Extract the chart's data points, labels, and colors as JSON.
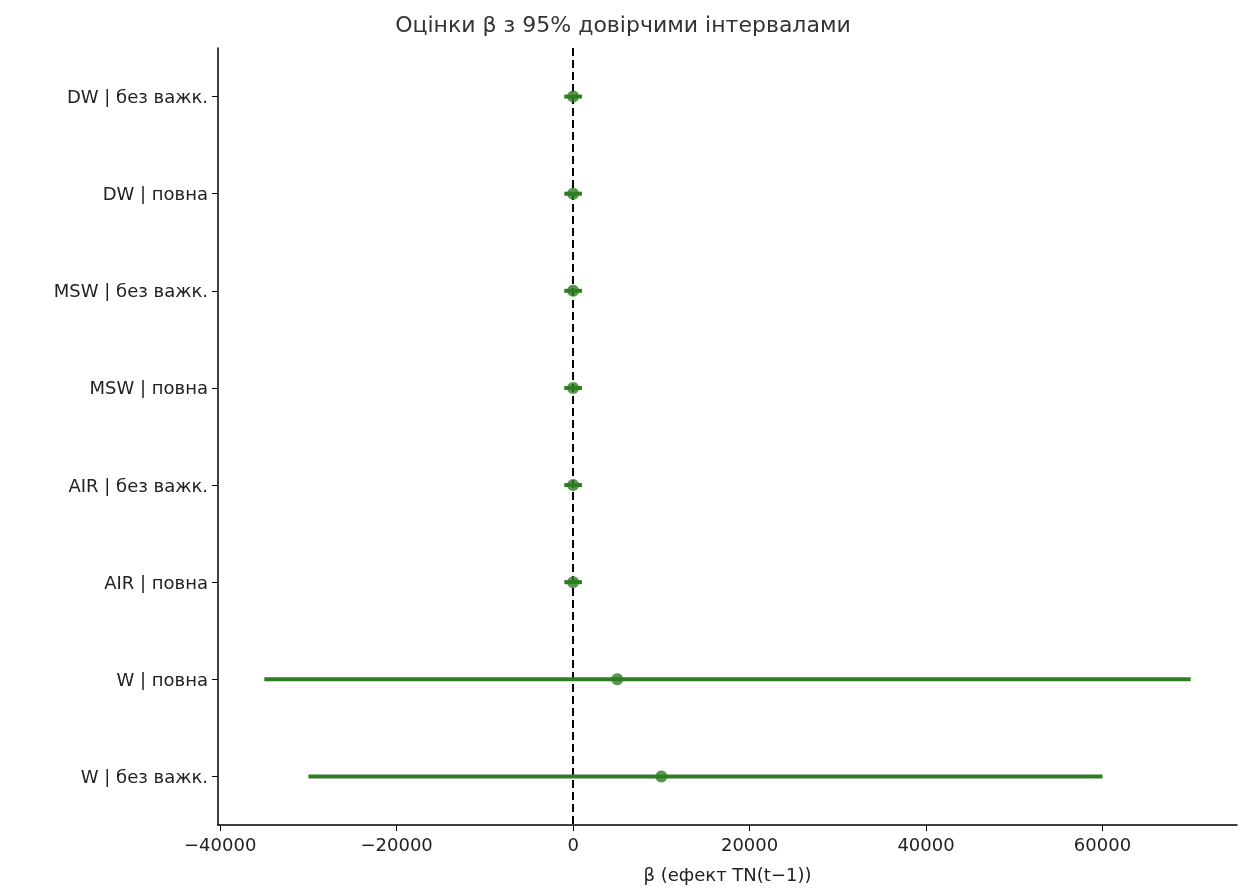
{
  "chart_data": {
    "type": "scatter",
    "orientation": "horizontal",
    "title": "Оцінки β з 95% довірчими інтервалами",
    "xlabel": "β (ефект TN(t−1))",
    "categories": [
      "DW | без важк.",
      "DW | повна",
      "MSW | без важк.",
      "MSW | повна",
      "AIR | без важк.",
      "AIR | повна",
      "W | повна",
      "W | без важк."
    ],
    "values": [
      0,
      0,
      0,
      0,
      0,
      0,
      5000,
      10000
    ],
    "errors": [
      1000,
      1000,
      1000,
      1000,
      1000,
      1000,
      [
        -35000,
        70000
      ],
      [
        -30000,
        60000
      ]
    ],
    "color": "#2e7d22",
    "marker": "circle",
    "xlim": [
      -40250,
      75250
    ],
    "xticks": [
      {
        "value": -40000,
        "label": "−40000"
      },
      {
        "value": -20000,
        "label": "−20000"
      },
      0,
      20000,
      40000,
      60000
    ],
    "ref_lines": [
      {
        "axis": "x",
        "value": 0,
        "color": "#000000",
        "line_style": "dashed"
      }
    ],
    "grid": false
  }
}
